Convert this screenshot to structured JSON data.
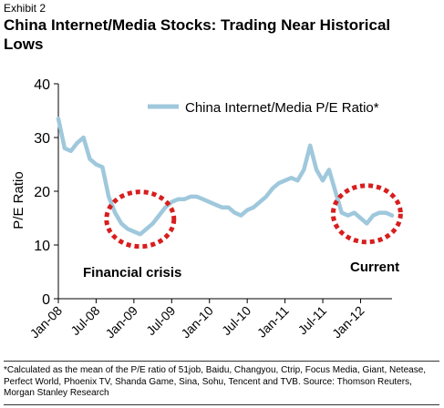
{
  "exhibit_label": "Exhibit 2",
  "title": "China Internet/Media Stocks: Trading Near Historical Lows",
  "footnote": "*Calculated as the mean of the P/E ratio of 51job, Baidu, Changyou, Ctrip, Focus Media, Giant, Netease, Perfect World, Phoenix TV, Shanda Game, Sina, Sohu, Tencent and TVB. Source: Thomson Reuters, Morgan Stanley Research",
  "colors": {
    "line": "#9fc8dc",
    "circle": "#d81e1e"
  },
  "chart_data": {
    "type": "line",
    "ylabel": "P/E Ratio",
    "ylim": [
      0,
      40
    ],
    "yticks": [
      0,
      10,
      20,
      30,
      40
    ],
    "xlim": [
      "2008-01",
      "2012-06"
    ],
    "xticks": [
      {
        "label": "Jan-08",
        "x": "2008-01"
      },
      {
        "label": "Jul-08",
        "x": "2008-07"
      },
      {
        "label": "Jan-09",
        "x": "2009-01"
      },
      {
        "label": "Jul-09",
        "x": "2009-07"
      },
      {
        "label": "Jan-10",
        "x": "2010-01"
      },
      {
        "label": "Jul-10",
        "x": "2010-07"
      },
      {
        "label": "Jan-11",
        "x": "2011-01"
      },
      {
        "label": "Jul-11",
        "x": "2011-07"
      },
      {
        "label": "Jan-12",
        "x": "2012-01"
      }
    ],
    "legend": "top-right",
    "series": [
      {
        "name": "China Internet/Media P/E Ratio*",
        "x": [
          "2008-01",
          "2008-02",
          "2008-03",
          "2008-04",
          "2008-05",
          "2008-06",
          "2008-07",
          "2008-08",
          "2008-09",
          "2008-10",
          "2008-11",
          "2008-12",
          "2009-01",
          "2009-02",
          "2009-03",
          "2009-04",
          "2009-05",
          "2009-06",
          "2009-07",
          "2009-08",
          "2009-09",
          "2009-10",
          "2009-11",
          "2009-12",
          "2010-01",
          "2010-02",
          "2010-03",
          "2010-04",
          "2010-05",
          "2010-06",
          "2010-07",
          "2010-08",
          "2010-09",
          "2010-10",
          "2010-11",
          "2010-12",
          "2011-01",
          "2011-02",
          "2011-03",
          "2011-04",
          "2011-05",
          "2011-06",
          "2011-07",
          "2011-08",
          "2011-09",
          "2011-10",
          "2011-11",
          "2011-12",
          "2012-01",
          "2012-02",
          "2012-03",
          "2012-04",
          "2012-05",
          "2012-06"
        ],
        "values": [
          33.5,
          28,
          27.5,
          29,
          30,
          26,
          25,
          24.5,
          19,
          16,
          14,
          13,
          12.5,
          12,
          13,
          14,
          15.5,
          17,
          18,
          18.5,
          18.5,
          19,
          19,
          18.5,
          18,
          17.5,
          17,
          17,
          16,
          15.5,
          16.5,
          17,
          18,
          19,
          20.5,
          21.5,
          22,
          22.5,
          22,
          24,
          28.5,
          24,
          22,
          24,
          20,
          16,
          15.5,
          16,
          15,
          14,
          15.5,
          16,
          16,
          15.5
        ]
      }
    ],
    "annotations": [
      {
        "text": "Financial crisis",
        "x": "2009-01",
        "y": 16
      },
      {
        "text": "Current",
        "x": "2012-03",
        "y": 16
      }
    ]
  }
}
